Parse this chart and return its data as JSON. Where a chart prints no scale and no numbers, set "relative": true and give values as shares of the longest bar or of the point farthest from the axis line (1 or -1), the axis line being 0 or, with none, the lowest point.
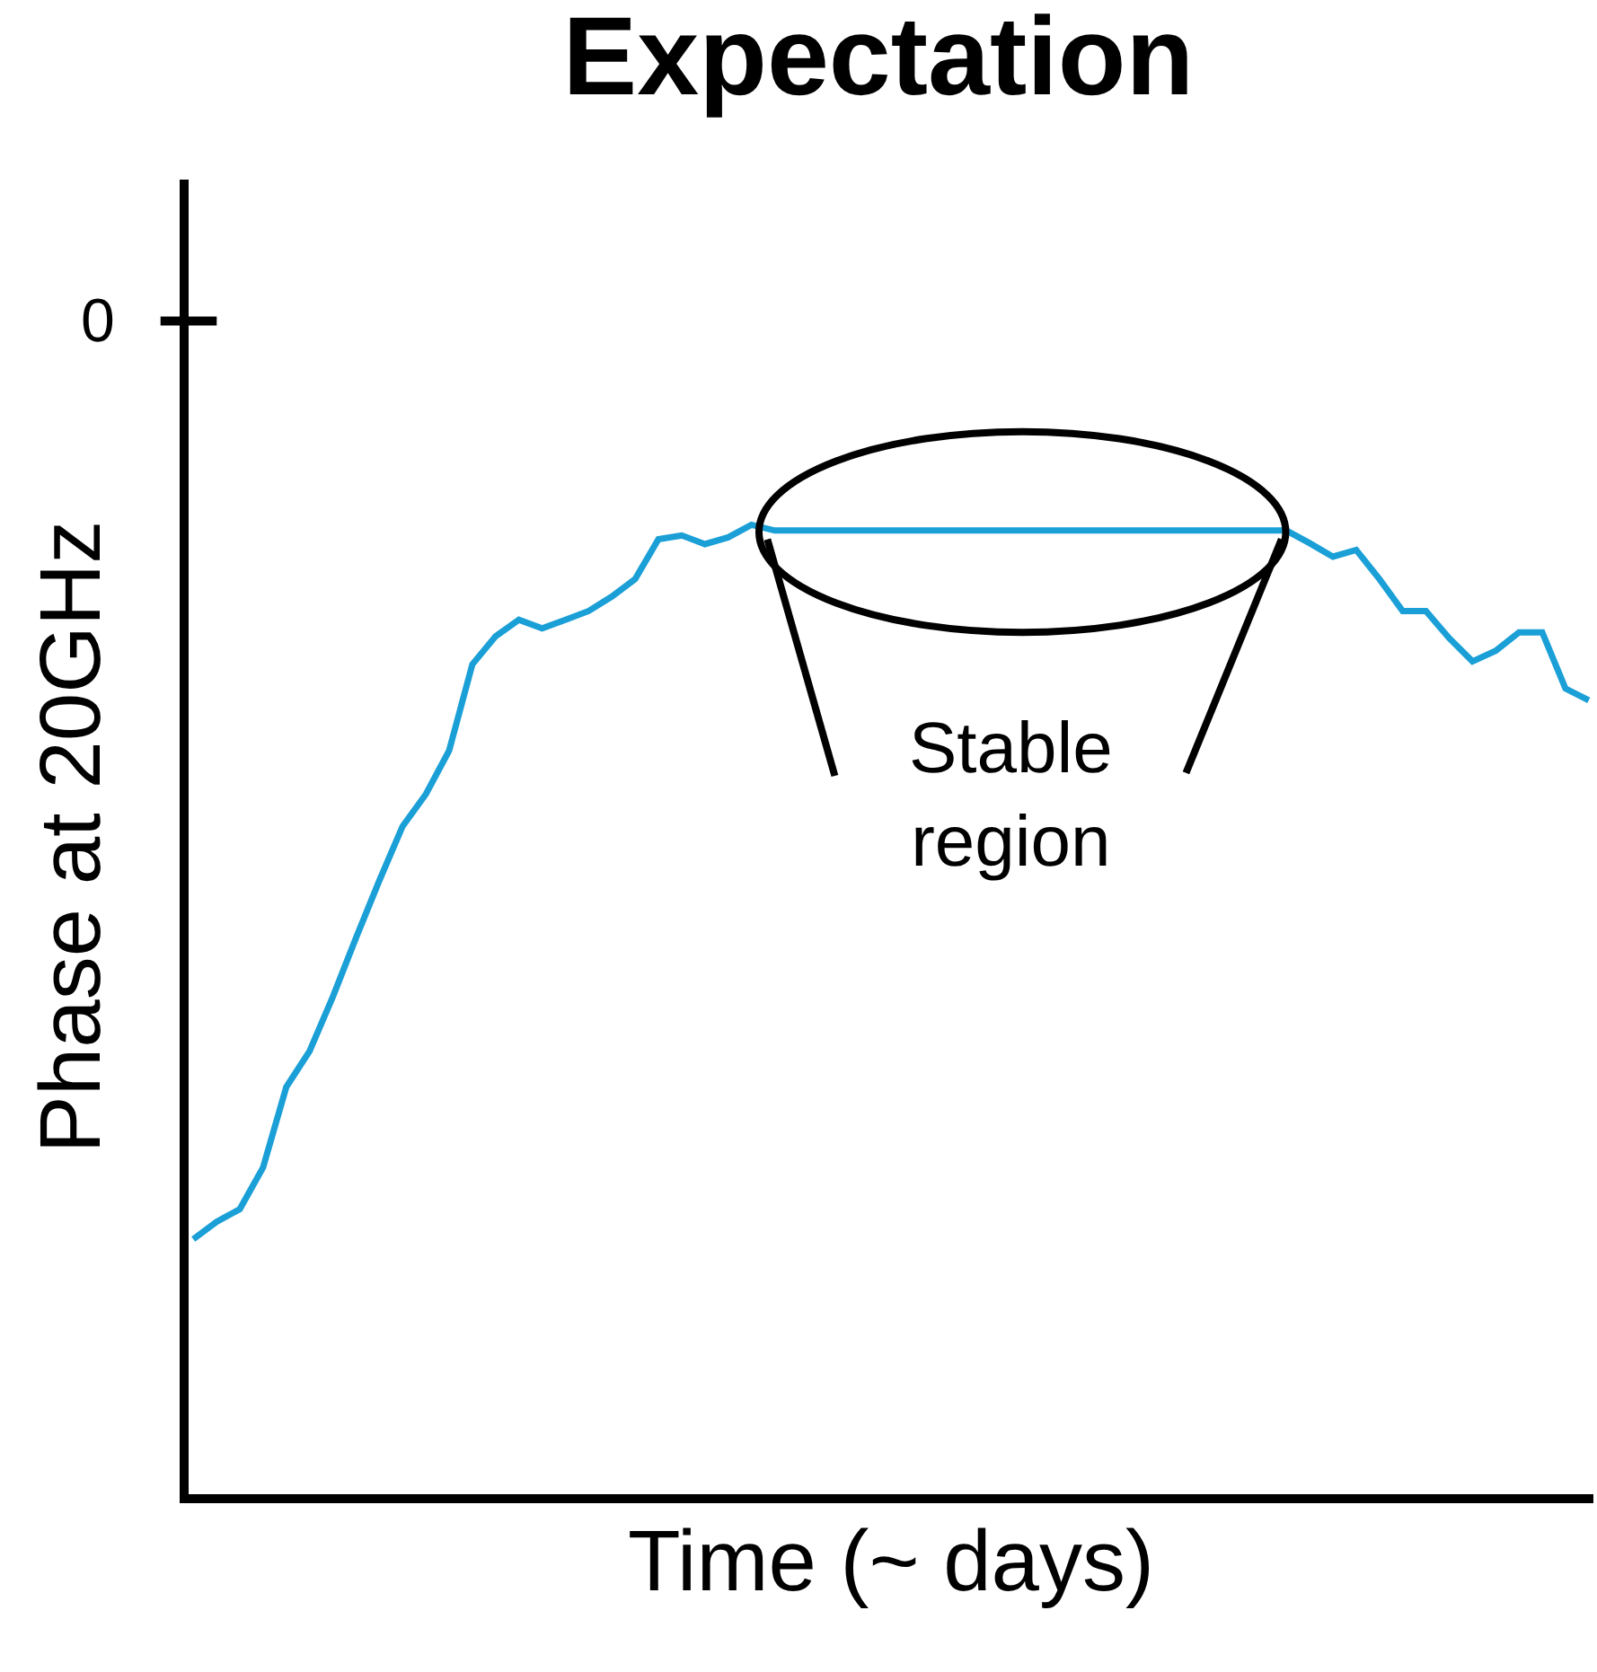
{
  "chart_data": {
    "type": "line",
    "title": "Expectation",
    "xlabel": "Time (~ days)",
    "ylabel": "Phase at 20GHz",
    "relative": true,
    "marker": "none",
    "line_style": "solid",
    "annotations": [
      "0",
      "Stable region"
    ],
    "categories": [
      null,
      null,
      null,
      null,
      null,
      null,
      null,
      null,
      null,
      null,
      null,
      null,
      null,
      null,
      null,
      null,
      null,
      null,
      null,
      null,
      null,
      null,
      null,
      null,
      null,
      null,
      null,
      null,
      null,
      null,
      null,
      null,
      null,
      null,
      null,
      null,
      null,
      null,
      null,
      null,
      null,
      null,
      null,
      null,
      null,
      null,
      null,
      null,
      null,
      null,
      null,
      null,
      null,
      null,
      null,
      null,
      null,
      null,
      null,
      null,
      null
    ],
    "series": [
      {
        "color": "#1a9fd6",
        "values": [
          0.263,
          0.281,
          0.294,
          0.337,
          0.42,
          0.457,
          0.513,
          0.574,
          0.633,
          0.689,
          0.722,
          0.767,
          0.856,
          0.885,
          0.902,
          0.893,
          0.902,
          0.911,
          0.926,
          0.944,
          0.985,
          0.989,
          0.98,
          0.987,
          1.0,
          0.994,
          0.994,
          0.994,
          0.994,
          0.994,
          0.994,
          0.994,
          0.994,
          0.994,
          0.994,
          0.994,
          0.994,
          0.994,
          0.994,
          0.994,
          0.994,
          0.994,
          0.994,
          0.994,
          0.994,
          0.994,
          0.994,
          0.994,
          0.981,
          0.967,
          0.974,
          0.944,
          0.911,
          0.911,
          0.883,
          0.859,
          0.87,
          0.889,
          0.889,
          0.831,
          0.819
        ]
      }
    ]
  }
}
